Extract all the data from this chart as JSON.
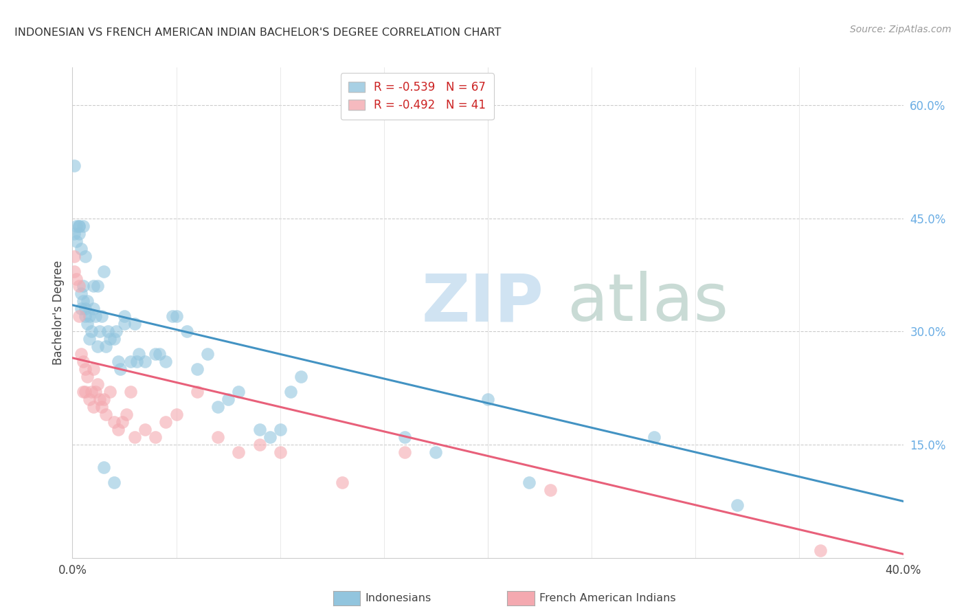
{
  "title": "INDONESIAN VS FRENCH AMERICAN INDIAN BACHELOR'S DEGREE CORRELATION CHART",
  "source": "Source: ZipAtlas.com",
  "ylabel": "Bachelor's Degree",
  "xlim": [
    0.0,
    0.4
  ],
  "ylim": [
    0.0,
    0.65
  ],
  "yticks_right": [
    0.15,
    0.3,
    0.45,
    0.6
  ],
  "ytick_labels_right": [
    "15.0%",
    "30.0%",
    "45.0%",
    "60.0%"
  ],
  "blue_color": "#92c5de",
  "pink_color": "#f4a9b0",
  "blue_line_color": "#4393c3",
  "pink_line_color": "#e8607a",
  "blue_line_x0": 0.0,
  "blue_line_y0": 0.335,
  "blue_line_x1": 0.4,
  "blue_line_y1": 0.075,
  "pink_line_x0": 0.0,
  "pink_line_y0": 0.265,
  "pink_line_x1": 0.4,
  "pink_line_y1": 0.005,
  "indonesian_x": [
    0.001,
    0.001,
    0.002,
    0.002,
    0.003,
    0.003,
    0.004,
    0.004,
    0.005,
    0.005,
    0.005,
    0.006,
    0.006,
    0.007,
    0.007,
    0.008,
    0.009,
    0.01,
    0.01,
    0.011,
    0.012,
    0.013,
    0.014,
    0.015,
    0.016,
    0.017,
    0.018,
    0.02,
    0.021,
    0.022,
    0.023,
    0.025,
    0.025,
    0.028,
    0.03,
    0.031,
    0.032,
    0.035,
    0.04,
    0.042,
    0.045,
    0.048,
    0.05,
    0.055,
    0.06,
    0.065,
    0.07,
    0.075,
    0.08,
    0.09,
    0.095,
    0.1,
    0.105,
    0.11,
    0.16,
    0.175,
    0.2,
    0.22,
    0.28,
    0.32,
    0.003,
    0.004,
    0.006,
    0.008,
    0.012,
    0.015,
    0.02
  ],
  "indonesian_y": [
    0.52,
    0.43,
    0.44,
    0.42,
    0.44,
    0.43,
    0.41,
    0.35,
    0.44,
    0.36,
    0.34,
    0.4,
    0.33,
    0.34,
    0.31,
    0.32,
    0.3,
    0.36,
    0.33,
    0.32,
    0.36,
    0.3,
    0.32,
    0.38,
    0.28,
    0.3,
    0.29,
    0.29,
    0.3,
    0.26,
    0.25,
    0.32,
    0.31,
    0.26,
    0.31,
    0.26,
    0.27,
    0.26,
    0.27,
    0.27,
    0.26,
    0.32,
    0.32,
    0.3,
    0.25,
    0.27,
    0.2,
    0.21,
    0.22,
    0.17,
    0.16,
    0.17,
    0.22,
    0.24,
    0.16,
    0.14,
    0.21,
    0.1,
    0.16,
    0.07,
    0.44,
    0.33,
    0.32,
    0.29,
    0.28,
    0.12,
    0.1
  ],
  "french_indian_x": [
    0.001,
    0.001,
    0.002,
    0.003,
    0.003,
    0.004,
    0.005,
    0.005,
    0.006,
    0.006,
    0.007,
    0.008,
    0.009,
    0.01,
    0.01,
    0.011,
    0.012,
    0.013,
    0.014,
    0.015,
    0.016,
    0.018,
    0.02,
    0.022,
    0.024,
    0.026,
    0.028,
    0.03,
    0.035,
    0.04,
    0.045,
    0.05,
    0.06,
    0.07,
    0.08,
    0.09,
    0.1,
    0.13,
    0.16,
    0.23,
    0.36
  ],
  "french_indian_y": [
    0.4,
    0.38,
    0.37,
    0.36,
    0.32,
    0.27,
    0.26,
    0.22,
    0.25,
    0.22,
    0.24,
    0.21,
    0.22,
    0.25,
    0.2,
    0.22,
    0.23,
    0.21,
    0.2,
    0.21,
    0.19,
    0.22,
    0.18,
    0.17,
    0.18,
    0.19,
    0.22,
    0.16,
    0.17,
    0.16,
    0.18,
    0.19,
    0.22,
    0.16,
    0.14,
    0.15,
    0.14,
    0.1,
    0.14,
    0.09,
    0.01
  ]
}
